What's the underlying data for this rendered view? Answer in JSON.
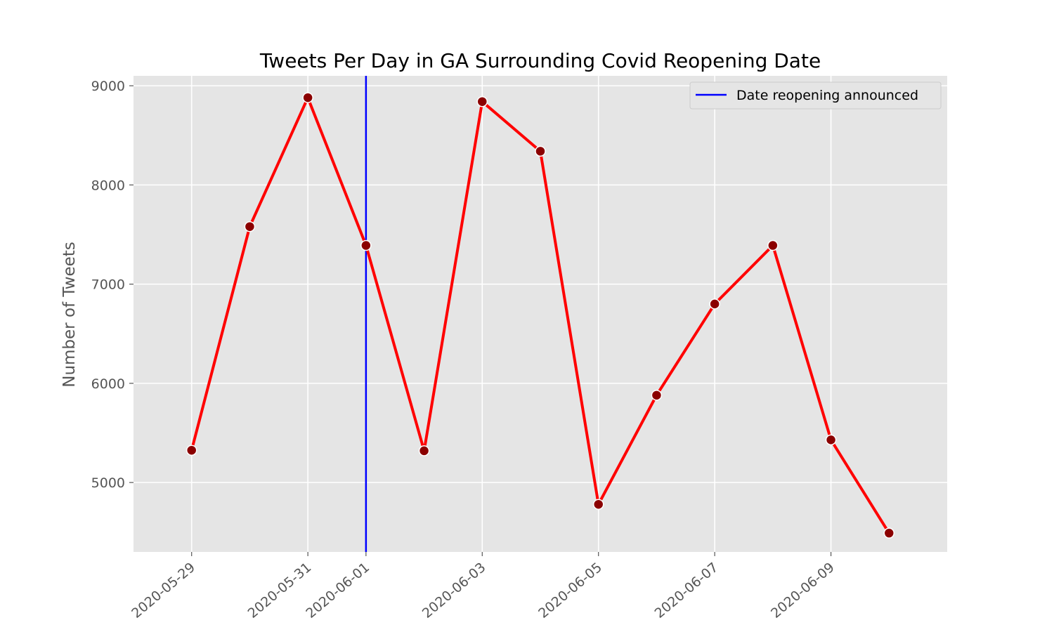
{
  "chart_data": {
    "type": "line",
    "title": "Tweets Per Day in GA Surrounding Covid Reopening Date",
    "xlabel": "",
    "ylabel": "Number of Tweets",
    "x": [
      "2020-05-29",
      "2020-05-30",
      "2020-05-31",
      "2020-06-01",
      "2020-06-02",
      "2020-06-03",
      "2020-06-04",
      "2020-06-05",
      "2020-06-06",
      "2020-06-07",
      "2020-06-08",
      "2020-06-09",
      "2020-06-10"
    ],
    "x_ticks": [
      "2020-05-29",
      "2020-05-31",
      "2020-06-01",
      "2020-06-03",
      "2020-06-05",
      "2020-06-07",
      "2020-06-09"
    ],
    "y_ticks": [
      5000,
      6000,
      7000,
      8000,
      9000
    ],
    "ylim": [
      4300,
      9100
    ],
    "xlim": [
      "2020-05-28",
      "2020-06-11"
    ],
    "grid": true,
    "series": [
      {
        "values": [
          5325,
          7580,
          8880,
          7390,
          5320,
          8840,
          8340,
          4780,
          5880,
          6800,
          7390,
          5430,
          4490
        ],
        "line_color": "#ff0000",
        "marker_color": "#8b0000"
      }
    ],
    "vline": {
      "x": "2020-06-01",
      "label": "Date reopening announced",
      "color": "#0000ff"
    },
    "legend": {
      "entries": [
        "Date reopening announced"
      ],
      "position": "top-right"
    }
  }
}
